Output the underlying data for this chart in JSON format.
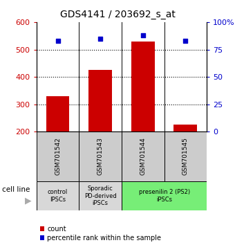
{
  "title": "GDS4141 / 203692_s_at",
  "samples": [
    "GSM701542",
    "GSM701543",
    "GSM701544",
    "GSM701545"
  ],
  "counts": [
    330,
    425,
    530,
    225
  ],
  "percentiles": [
    83,
    85,
    88,
    83
  ],
  "ylim_left": [
    200,
    600
  ],
  "ylim_right": [
    0,
    100
  ],
  "yticks_left": [
    200,
    300,
    400,
    500,
    600
  ],
  "yticks_right": [
    0,
    25,
    50,
    75,
    100
  ],
  "yticklabels_right": [
    "0",
    "25",
    "50",
    "75",
    "100%"
  ],
  "bar_color": "#cc0000",
  "scatter_color": "#0000cc",
  "grid_ticks": [
    300,
    400,
    500
  ],
  "cell_line_groups": [
    {
      "label": "control\nIPSCs",
      "span": [
        0,
        1
      ],
      "color": "#d8d8d8"
    },
    {
      "label": "Sporadic\nPD-derived\niPSCs",
      "span": [
        1,
        2
      ],
      "color": "#d8d8d8"
    },
    {
      "label": "presenilin 2 (PS2)\niPSCs",
      "span": [
        2,
        4
      ],
      "color": "#77ee77"
    }
  ],
  "legend_count_label": "count",
  "legend_percentile_label": "percentile rank within the sample",
  "cell_line_label": "cell line",
  "background_color": "#ffffff",
  "sample_box_color": "#cccccc",
  "bar_width": 0.55
}
